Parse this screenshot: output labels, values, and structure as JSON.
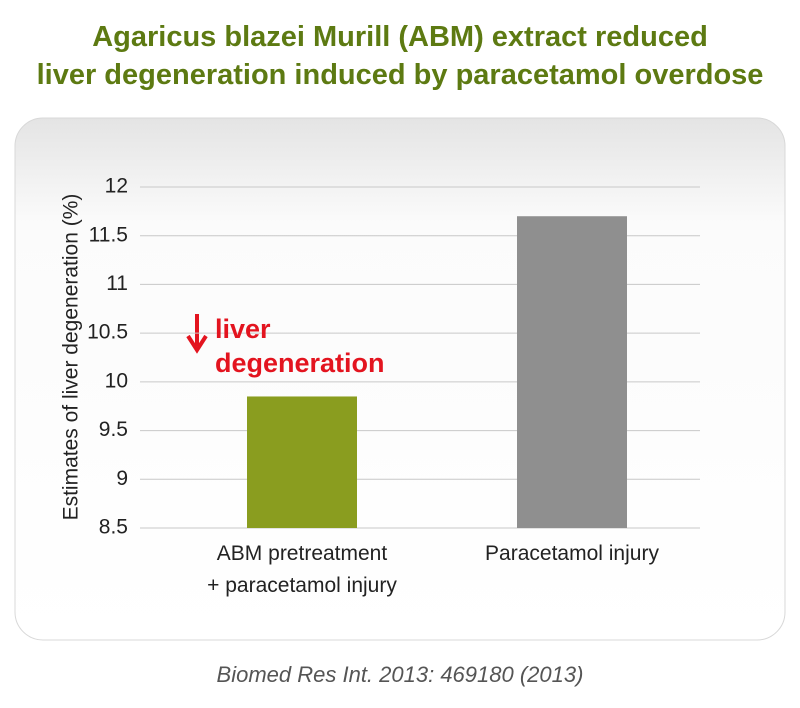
{
  "chart_data": {
    "type": "bar",
    "title": "Agaricus blazei Murill (ABM) extract reduced\nliver degeneration induced by paracetamol overdose",
    "y_label": "Estimates of liver degeneration (%)",
    "categories": [
      "ABM pretreatment\n+ paracetamol injury",
      "Paracetamol injury"
    ],
    "values": [
      9.85,
      11.7
    ],
    "colors": [
      "#8a9d1f",
      "#8f8f8f"
    ],
    "ylim": [
      8.5,
      12
    ],
    "yticks": [
      8.5,
      9,
      9.5,
      10,
      10.5,
      11,
      11.5,
      12
    ],
    "grid": true,
    "annotation": "liver\ndegeneration",
    "source": "Biomed Res Int. 2013: 469180 (2013)"
  }
}
